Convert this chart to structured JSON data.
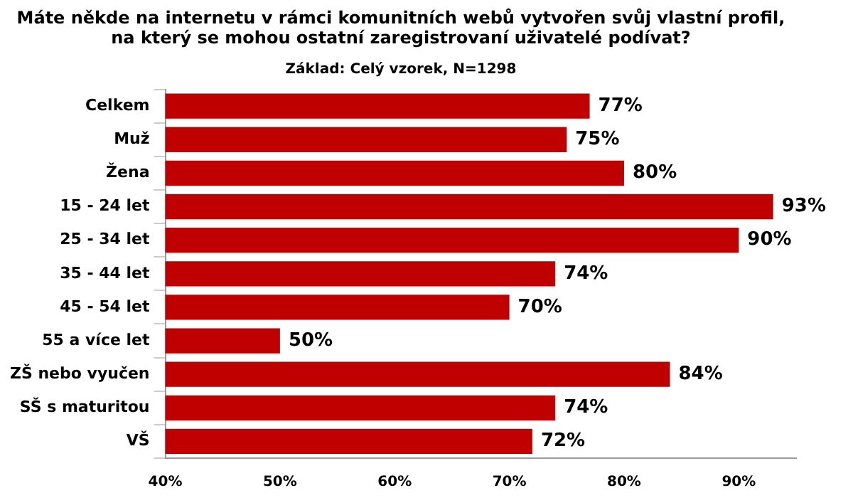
{
  "chart_data": {
    "type": "bar",
    "orientation": "horizontal",
    "title": "Máte někde na internetu v rámci komunitních webů vytvořen svůj vlastní profil, na který se mohou ostatní zaregistrovaní uživatelé podívat?",
    "subtitle": "Základ: Celý vzorek, N=1298",
    "categories": [
      "Celkem",
      "Muž",
      "Žena",
      "15 - 24 let",
      "25 - 34 let",
      "35 - 44 let",
      "45 - 54 let",
      "55 a více let",
      "ZŠ nebo vyučen",
      "SŠ s maturitou",
      "VŠ"
    ],
    "values": [
      77,
      75,
      80,
      93,
      90,
      74,
      70,
      50,
      84,
      74,
      72
    ],
    "value_labels": [
      "77%",
      "75%",
      "80%",
      "93%",
      "90%",
      "74%",
      "70%",
      "50%",
      "84%",
      "74%",
      "72%"
    ],
    "color": "#c00000",
    "xlim": [
      40,
      95
    ],
    "xticks": [
      {
        "value": 40,
        "label": "40%"
      },
      {
        "value": 50,
        "label": "50%"
      },
      {
        "value": 60,
        "label": "60%"
      },
      {
        "value": 70,
        "label": "70%"
      },
      {
        "value": 80,
        "label": "80%"
      },
      {
        "value": 90,
        "label": "90%"
      }
    ],
    "grid": false,
    "legend": false
  }
}
